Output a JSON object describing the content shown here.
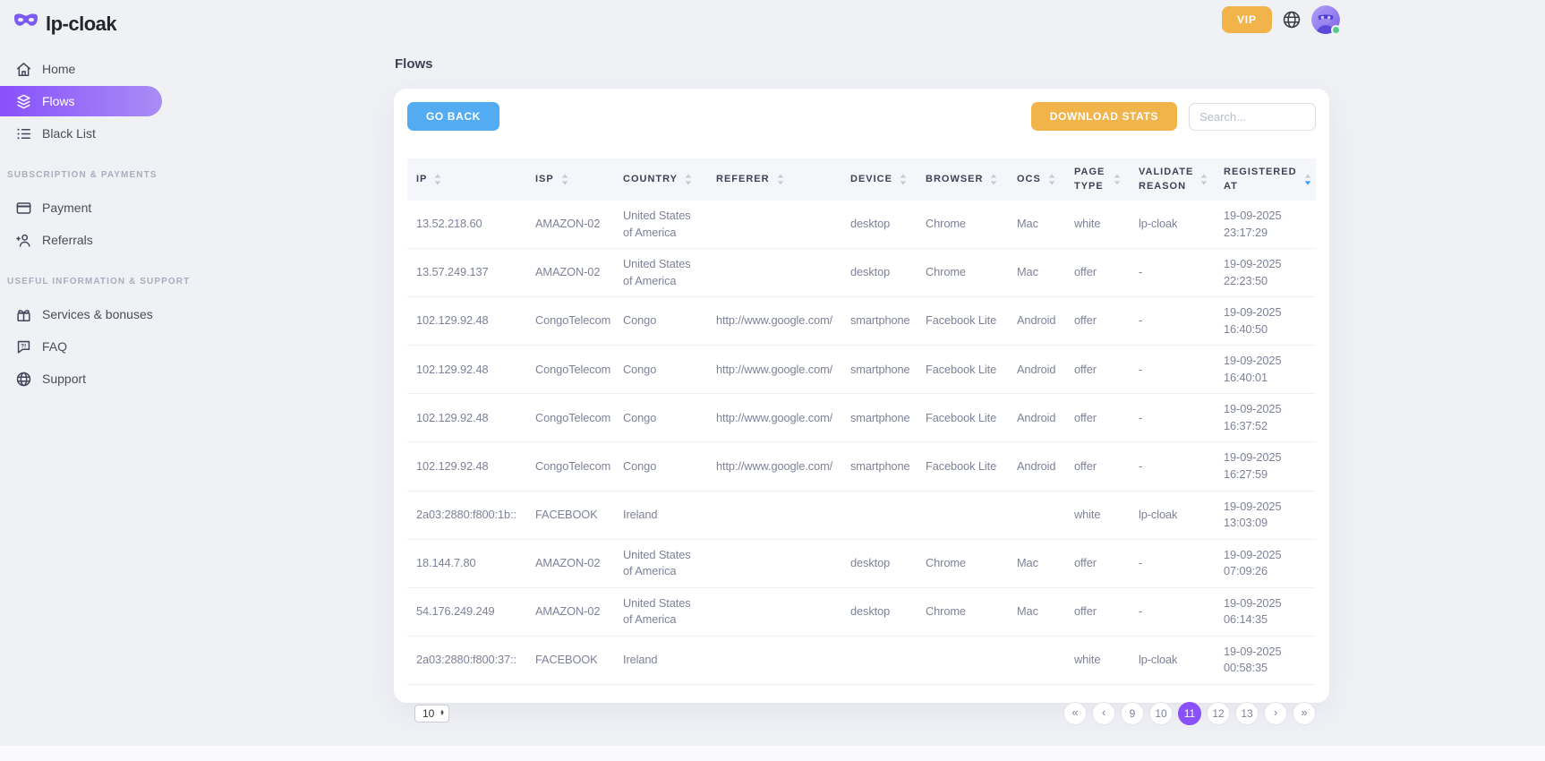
{
  "brand": {
    "name": "lp-cloak",
    "logo_icon": "mask-icon"
  },
  "topbar": {
    "vip_label": "VIP",
    "globe_icon": "globe-icon",
    "avatar": "masked-character-avatar",
    "online": true
  },
  "sidebar": {
    "items": [
      {
        "type": "link",
        "icon": "home-icon",
        "label": "Home",
        "active": false
      },
      {
        "type": "link",
        "icon": "flows-icon",
        "label": "Flows",
        "active": true
      },
      {
        "type": "link",
        "icon": "blacklist-icon",
        "label": "Black List",
        "active": false
      },
      {
        "type": "section",
        "label": "SUBSCRIPTION & PAYMENTS"
      },
      {
        "type": "link",
        "icon": "payment-icon",
        "label": "Payment",
        "active": false
      },
      {
        "type": "link",
        "icon": "referrals-icon",
        "label": "Referrals",
        "active": false
      },
      {
        "type": "section",
        "label": "USEFUL INFORMATION & SUPPORT"
      },
      {
        "type": "link",
        "icon": "services-icon",
        "label": "Services & bonuses",
        "active": false
      },
      {
        "type": "link",
        "icon": "faq-icon",
        "label": "FAQ",
        "active": false
      },
      {
        "type": "link",
        "icon": "support-icon",
        "label": "Support",
        "active": false
      }
    ]
  },
  "page": {
    "title": "Flows"
  },
  "toolbar": {
    "go_back_label": "GO BACK",
    "download_stats_label": "DOWNLOAD STATS",
    "search_placeholder": "Search..."
  },
  "table": {
    "columns": [
      {
        "label": "IP",
        "sort": "none"
      },
      {
        "label": "ISP",
        "sort": "none"
      },
      {
        "label": "COUNTRY",
        "sort": "none"
      },
      {
        "label": "REFERER",
        "sort": "none"
      },
      {
        "label": "DEVICE",
        "sort": "none"
      },
      {
        "label": "BROWSER",
        "sort": "none"
      },
      {
        "label": "OCS",
        "sort": "none"
      },
      {
        "label": "PAGE TYPE",
        "sort": "none"
      },
      {
        "label": "VALIDATE REASON",
        "sort": "none"
      },
      {
        "label": "REGISTERED AT",
        "sort": "desc"
      }
    ],
    "rows": [
      [
        "13.52.218.60",
        "AMAZON-02",
        "United States of America",
        "",
        "desktop",
        "Chrome",
        "Mac",
        "white",
        "lp-cloak",
        "19-09-2025 23:17:29"
      ],
      [
        "13.57.249.137",
        "AMAZON-02",
        "United States of America",
        "",
        "desktop",
        "Chrome",
        "Mac",
        "offer",
        "-",
        "19-09-2025 22:23:50"
      ],
      [
        "102.129.92.48",
        "CongoTelecom",
        "Congo",
        "http://www.google.com/",
        "smartphone",
        "Facebook Lite",
        "Android",
        "offer",
        "-",
        "19-09-2025 16:40:50"
      ],
      [
        "102.129.92.48",
        "CongoTelecom",
        "Congo",
        "http://www.google.com/",
        "smartphone",
        "Facebook Lite",
        "Android",
        "offer",
        "-",
        "19-09-2025 16:40:01"
      ],
      [
        "102.129.92.48",
        "CongoTelecom",
        "Congo",
        "http://www.google.com/",
        "smartphone",
        "Facebook Lite",
        "Android",
        "offer",
        "-",
        "19-09-2025 16:37:52"
      ],
      [
        "102.129.92.48",
        "CongoTelecom",
        "Congo",
        "http://www.google.com/",
        "smartphone",
        "Facebook Lite",
        "Android",
        "offer",
        "-",
        "19-09-2025 16:27:59"
      ],
      [
        "2a03:2880:f800:1b::",
        "FACEBOOK",
        "Ireland",
        "",
        "",
        "",
        "",
        "white",
        "lp-cloak",
        "19-09-2025 13:03:09"
      ],
      [
        "18.144.7.80",
        "AMAZON-02",
        "United States of America",
        "",
        "desktop",
        "Chrome",
        "Mac",
        "offer",
        "-",
        "19-09-2025 07:09:26"
      ],
      [
        "54.176.249.249",
        "AMAZON-02",
        "United States of America",
        "",
        "desktop",
        "Chrome",
        "Mac",
        "offer",
        "-",
        "19-09-2025 06:14:35"
      ],
      [
        "2a03:2880:f800:37::",
        "FACEBOOK",
        "Ireland",
        "",
        "",
        "",
        "",
        "white",
        "lp-cloak",
        "19-09-2025 00:58:35"
      ]
    ]
  },
  "pagination": {
    "page_size": "10",
    "pages": [
      "9",
      "10",
      "11",
      "12",
      "13"
    ],
    "active_page": "11"
  },
  "colors": {
    "accent_purple": "#8950fc",
    "accent_blue": "#53acf2",
    "accent_orange": "#f0b44b",
    "online_green": "#50cd89",
    "sort_active_blue": "#3699ff"
  }
}
